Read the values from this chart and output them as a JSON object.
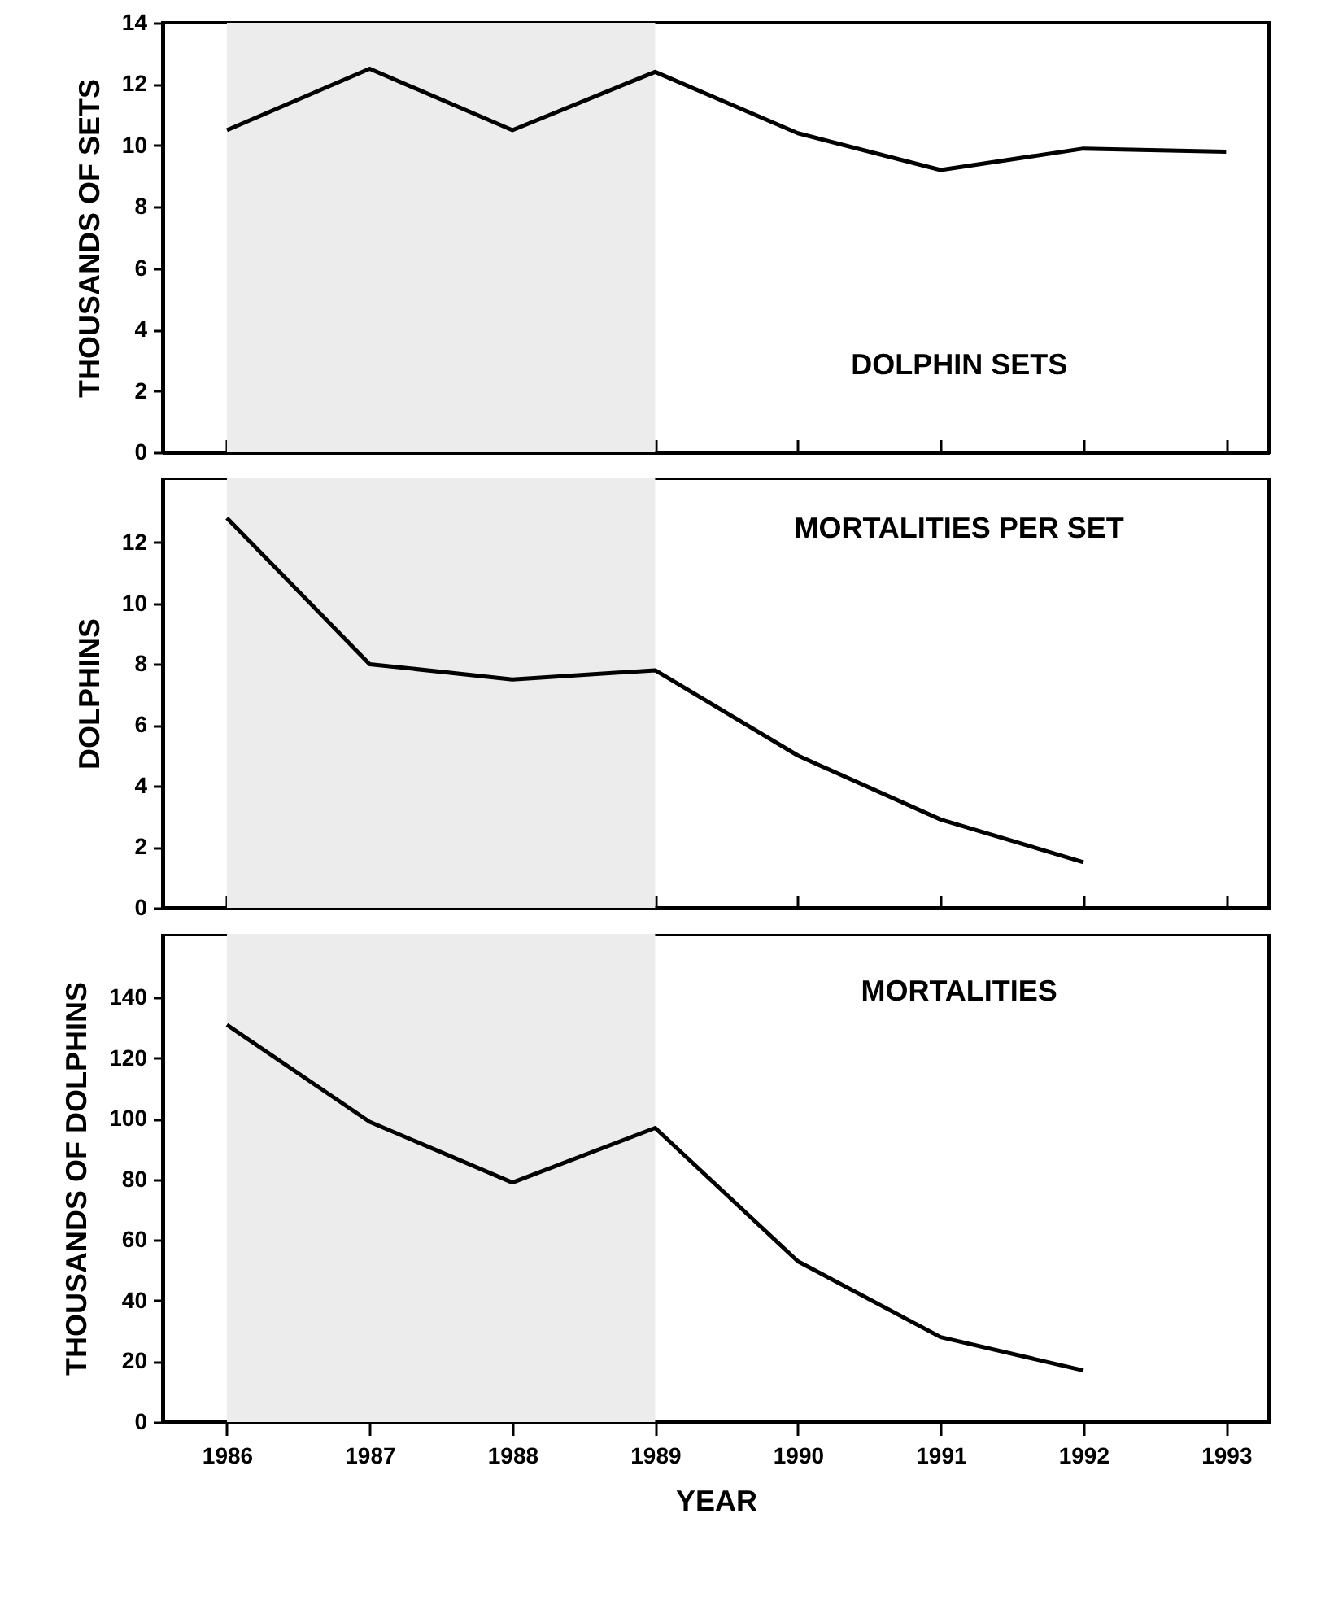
{
  "chart_data": [
    {
      "type": "line",
      "ylabel": "THOUSANDS OF SETS",
      "annotations": [
        "DOLPHIN SETS"
      ],
      "x": [
        1986,
        1987,
        1988,
        1989,
        1990,
        1991,
        1992,
        1993
      ],
      "xlim": [
        1985.55,
        1993.3
      ],
      "xticks": [
        {
          "value": 1986,
          "label": null
        },
        {
          "value": 1987,
          "label": null
        },
        {
          "value": 1988,
          "label": null
        },
        {
          "value": 1989,
          "label": null
        },
        {
          "value": 1990,
          "label": null
        },
        {
          "value": 1991,
          "label": null
        },
        {
          "value": 1992,
          "label": null
        },
        {
          "value": 1993,
          "label": null
        }
      ],
      "ylim": [
        0,
        14
      ],
      "yticks": [
        0,
        2,
        4,
        6,
        8,
        10,
        12,
        14
      ],
      "tick_labels": "y",
      "grid": false,
      "marker": "none",
      "series": [
        {
          "color": "#000000",
          "values": [
            10.5,
            12.5,
            10.5,
            12.4,
            10.4,
            9.2,
            9.9,
            9.8
          ]
        }
      ],
      "bands": [
        {
          "axis": "x",
          "from": 1986,
          "to": 1989,
          "color": "#ececec"
        }
      ]
    },
    {
      "type": "line",
      "ylabel": "DOLPHINS",
      "annotations": [
        "MORTALITIES PER SET"
      ],
      "x": [
        1986,
        1987,
        1988,
        1989,
        1990,
        1991,
        1992
      ],
      "xlim": [
        1985.55,
        1993.3
      ],
      "xticks": [
        {
          "value": 1986,
          "label": null
        },
        {
          "value": 1987,
          "label": null
        },
        {
          "value": 1988,
          "label": null
        },
        {
          "value": 1989,
          "label": null
        },
        {
          "value": 1990,
          "label": null
        },
        {
          "value": 1991,
          "label": null
        },
        {
          "value": 1992,
          "label": null
        },
        {
          "value": 1993,
          "label": null
        }
      ],
      "ylim": [
        0,
        14.1
      ],
      "yticks": [
        0,
        2,
        4,
        6,
        8,
        10,
        12
      ],
      "tick_labels": "y",
      "grid": false,
      "marker": "none",
      "series": [
        {
          "color": "#000000",
          "values": [
            12.8,
            8.0,
            7.5,
            7.8,
            5.0,
            2.9,
            1.5
          ]
        }
      ],
      "bands": [
        {
          "axis": "x",
          "from": 1986,
          "to": 1989,
          "color": "#ececec"
        }
      ]
    },
    {
      "type": "line",
      "xlabel": "YEAR",
      "ylabel": "THOUSANDS OF DOLPHINS",
      "annotations": [
        "MORTALITIES"
      ],
      "x": [
        1986,
        1987,
        1988,
        1989,
        1990,
        1991,
        1992
      ],
      "xlim": [
        1985.55,
        1993.3
      ],
      "xticks": [
        1986,
        1987,
        1988,
        1989,
        1990,
        1991,
        1992,
        1993
      ],
      "ylim": [
        0,
        161
      ],
      "yticks": [
        0,
        20,
        40,
        60,
        80,
        100,
        120,
        140
      ],
      "grid": false,
      "marker": "none",
      "series": [
        {
          "color": "#000000",
          "values": [
            131,
            99,
            79,
            97,
            53,
            28,
            17
          ]
        }
      ],
      "bands": [
        {
          "axis": "x",
          "from": 1986,
          "to": 1989,
          "color": "#ececec"
        }
      ]
    }
  ]
}
